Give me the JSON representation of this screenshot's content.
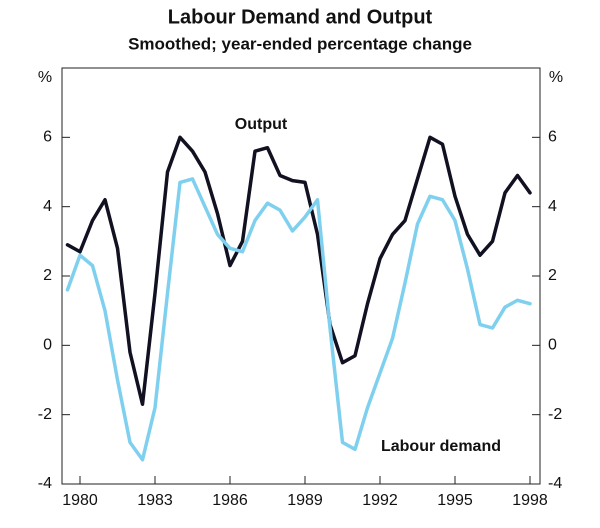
{
  "chart_data": {
    "type": "line",
    "title": "Labour Demand and Output",
    "subtitle": "Smoothed; year-ended percentage change",
    "y_unit_left": "%",
    "y_unit_right": "%",
    "annotations": [
      "Output",
      "Labour demand"
    ],
    "x": [
      1979.5,
      1980,
      1980.5,
      1981,
      1981.5,
      1982,
      1982.5,
      1983,
      1983.5,
      1984,
      1984.5,
      1985,
      1985.5,
      1986,
      1986.5,
      1987,
      1987.5,
      1988,
      1988.5,
      1989,
      1989.5,
      1990,
      1990.5,
      1991,
      1991.5,
      1992,
      1992.5,
      1993,
      1993.5,
      1994,
      1994.5,
      1995,
      1995.5,
      1996,
      1996.5,
      1997,
      1997.5,
      1998
    ],
    "series": [
      {
        "name": "Output",
        "color": "#111122",
        "values": [
          2.9,
          2.7,
          3.6,
          4.2,
          2.8,
          -0.2,
          -1.7,
          1.5,
          5.0,
          6.0,
          5.6,
          5.0,
          3.8,
          2.3,
          3.0,
          5.6,
          5.7,
          4.9,
          4.75,
          4.7,
          3.2,
          0.6,
          -0.5,
          -0.3,
          1.2,
          2.5,
          3.2,
          3.6,
          4.8,
          6.0,
          5.8,
          4.3,
          3.2,
          2.6,
          3.0,
          4.4,
          4.9,
          4.4
        ]
      },
      {
        "name": "Labour demand",
        "color": "#7fd0ee",
        "values": [
          1.6,
          2.6,
          2.3,
          1.0,
          -1.0,
          -2.8,
          -3.3,
          -1.8,
          1.5,
          4.7,
          4.8,
          4.0,
          3.2,
          2.8,
          2.7,
          3.6,
          4.1,
          3.9,
          3.3,
          3.7,
          4.2,
          0.5,
          -2.8,
          -3.0,
          -1.8,
          -0.8,
          0.2,
          1.8,
          3.5,
          4.3,
          4.2,
          3.6,
          2.2,
          0.6,
          0.5,
          1.1,
          1.3,
          1.2
        ]
      }
    ],
    "xlim": [
      1979.28,
      1998.4
    ],
    "xticks": [
      1980,
      1983,
      1986,
      1989,
      1992,
      1995,
      1998
    ],
    "ylim": [
      -4,
      8
    ],
    "yticks": [
      -4,
      -2,
      0,
      2,
      4,
      6
    ],
    "y2lim": [
      -4,
      8
    ],
    "y2ticks": [
      -4,
      -2,
      0,
      2,
      4,
      6
    ]
  }
}
